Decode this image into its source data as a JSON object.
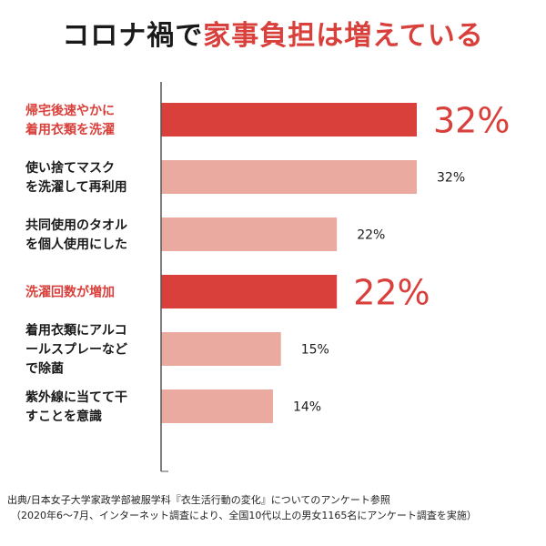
{
  "title": {
    "prefix": "コロナ禍で",
    "highlight": "家事負担は増えている"
  },
  "colors": {
    "highlight": "#d9403b",
    "normal": "#ebaaa0",
    "text": "#1a1a1a",
    "axis": "#555555"
  },
  "chart_data": {
    "type": "bar",
    "orientation": "horizontal",
    "categories": [
      [
        "帰宅後速やかに",
        "着用衣類を洗濯"
      ],
      [
        "使い捨てマスク",
        "を洗濯して再利用"
      ],
      [
        "共同使用のタオル",
        "を個人使用にした"
      ],
      [
        "洗濯回数が増加"
      ],
      [
        "着用衣類にアルコ",
        "ールスプレーなど",
        "で除菌"
      ],
      [
        "紫外線に当てて干",
        "すことを意識"
      ]
    ],
    "values": [
      32,
      32,
      22,
      22,
      15,
      14
    ],
    "labels": [
      "32%",
      "32%",
      "22%",
      "22%",
      "15%",
      "14%"
    ],
    "highlighted": [
      true,
      false,
      false,
      true,
      false,
      false
    ],
    "xlim": [
      0,
      38
    ],
    "grid": false,
    "legend": "none"
  },
  "source": {
    "line1": "出典/日本女子大学家政学部被服学科『衣生活行動の変化』についてのアンケート参照",
    "line2": "（2020年6～7月、インターネット調査により、全国10代以上の男女1165名にアンケート調査を実施）"
  }
}
